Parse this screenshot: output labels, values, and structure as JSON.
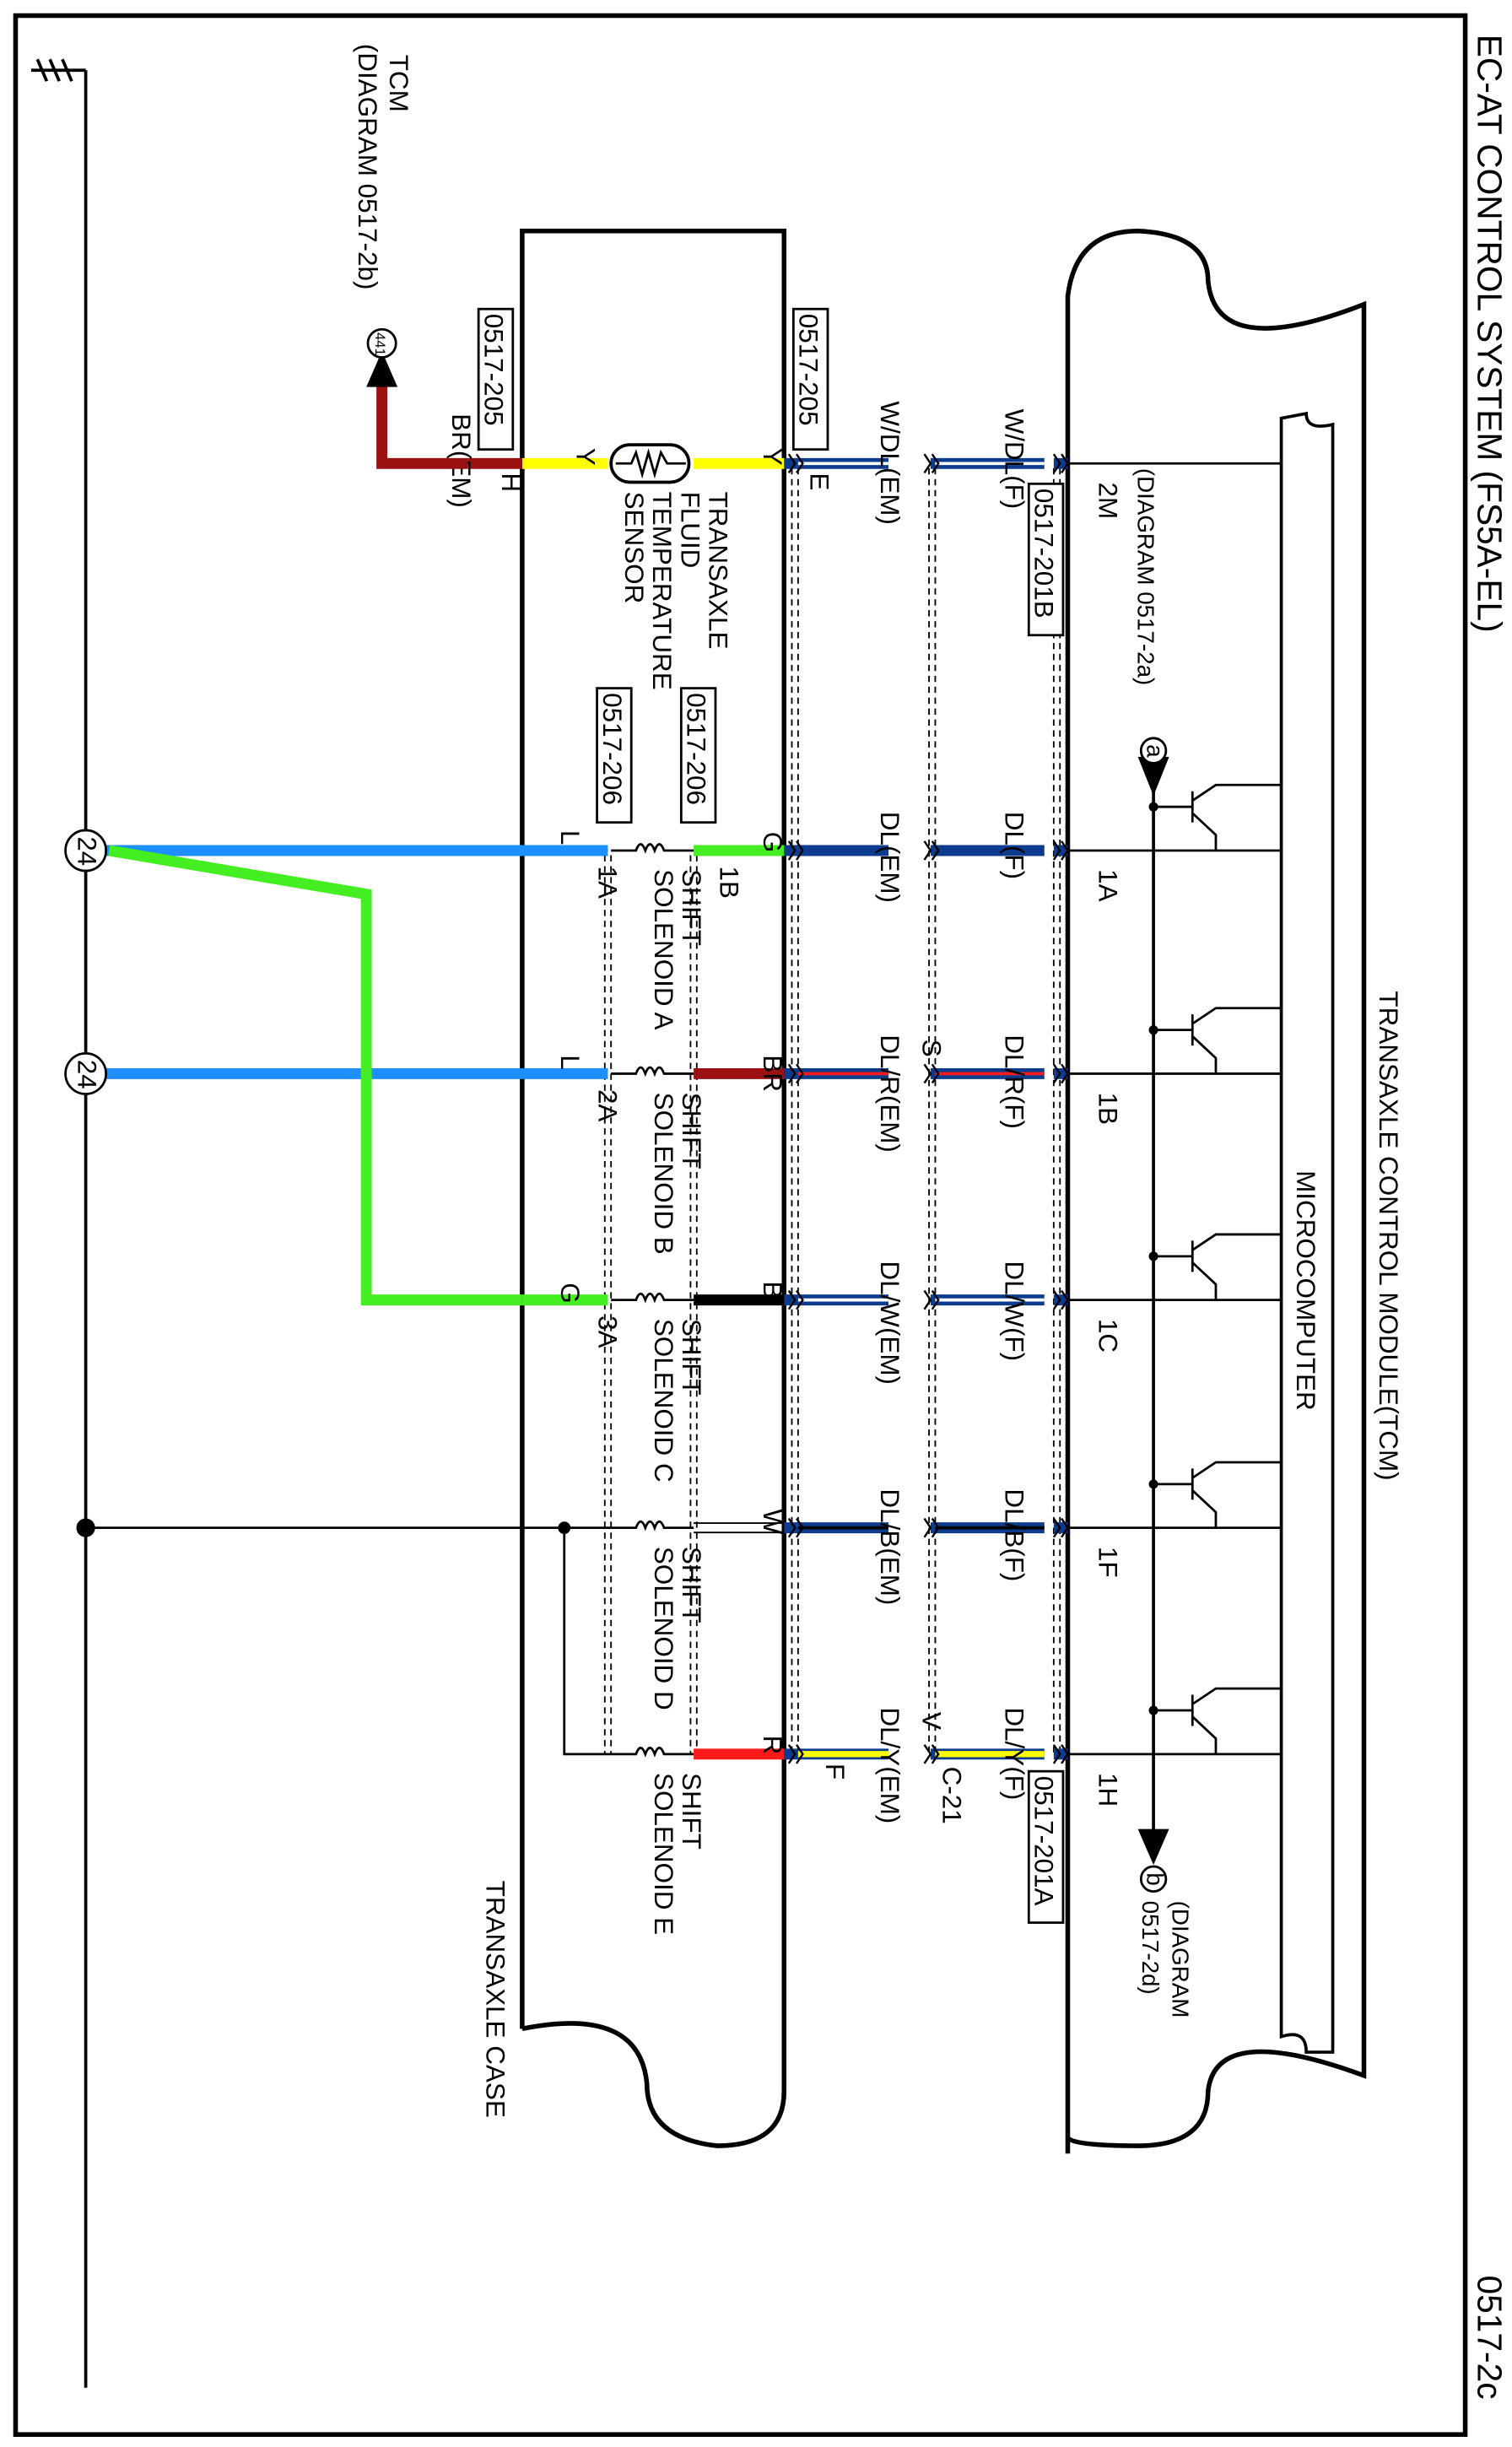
{
  "title": "EC-AT CONTROL SYSTEM (FS5A-EL)",
  "page_number": "0517-2c",
  "tcm": {
    "label": "TRANSAXLE CONTROL MODULE(TCM)",
    "microcomputer": "MICROCOMPUTER",
    "ref_top": "(DIAGRAM 0517-2a)",
    "ref_top_marker": "a",
    "ref_bottom": "(DIAGRAM",
    "ref_bottom2": "0517-2d)",
    "ref_bottom_marker": "b",
    "connector_2m": "0517-201B",
    "connector_1h": "0517-201A",
    "pins": [
      "2M",
      "1A",
      "1B",
      "1C",
      "1F",
      "1H"
    ]
  },
  "case": {
    "label": "TRANSAXLE CASE",
    "connector_top": "0517-205",
    "connector_left": "0517-205",
    "conn_206_a": "0517-206",
    "conn_206_b": "0517-206"
  },
  "tcm_ref": {
    "line1": "TCM",
    "line2": "(DIAGRAM 0517-2b)",
    "marker": "441"
  },
  "wires": {
    "f": [
      "W/DL(F)",
      "DL(F)",
      "DL/R(F)",
      "DL/W(F)",
      "DL/B(F)",
      "DL/Y(F)"
    ],
    "em": [
      "W/DL(EM)",
      "DL(EM)",
      "DL/R(EM)",
      "DL/W(EM)",
      "DL/B(EM)",
      "DL/Y(EM)"
    ],
    "inner": [
      "Y",
      "G",
      "BR",
      "B",
      "W",
      "R"
    ],
    "inner2": "Y",
    "outer": [
      "L",
      "L",
      "G"
    ],
    "br_em": "BR(EM)",
    "pin_h": "H",
    "pin_e": "E",
    "pin_f": "F",
    "splice_s": "S",
    "splice_v": "V",
    "splice_c21": "C-21"
  },
  "components": {
    "sensor": [
      "TRANSAXLE",
      "FLUID",
      "TEMPERATURE",
      "SENSOR"
    ],
    "sol_pins": [
      "1B",
      "1A",
      "2A",
      "3A"
    ],
    "solenoids": [
      [
        "SHIFT",
        "SOLENOID A"
      ],
      [
        "SHIFT",
        "SOLENOID B"
      ],
      [
        "SHIFT",
        "SOLENOID C"
      ],
      [
        "SHIFT",
        "SOLENOID D"
      ],
      [
        "SHIFT",
        "SOLENOID E"
      ]
    ]
  },
  "ground_markers": [
    "24",
    "24"
  ],
  "colors": {
    "L": "#1e8fff",
    "G": "#44ee22",
    "BR": "#9b1010",
    "Y": "#ffff00",
    "R": "#ff1a1a",
    "DL": "#0d3c8f"
  }
}
